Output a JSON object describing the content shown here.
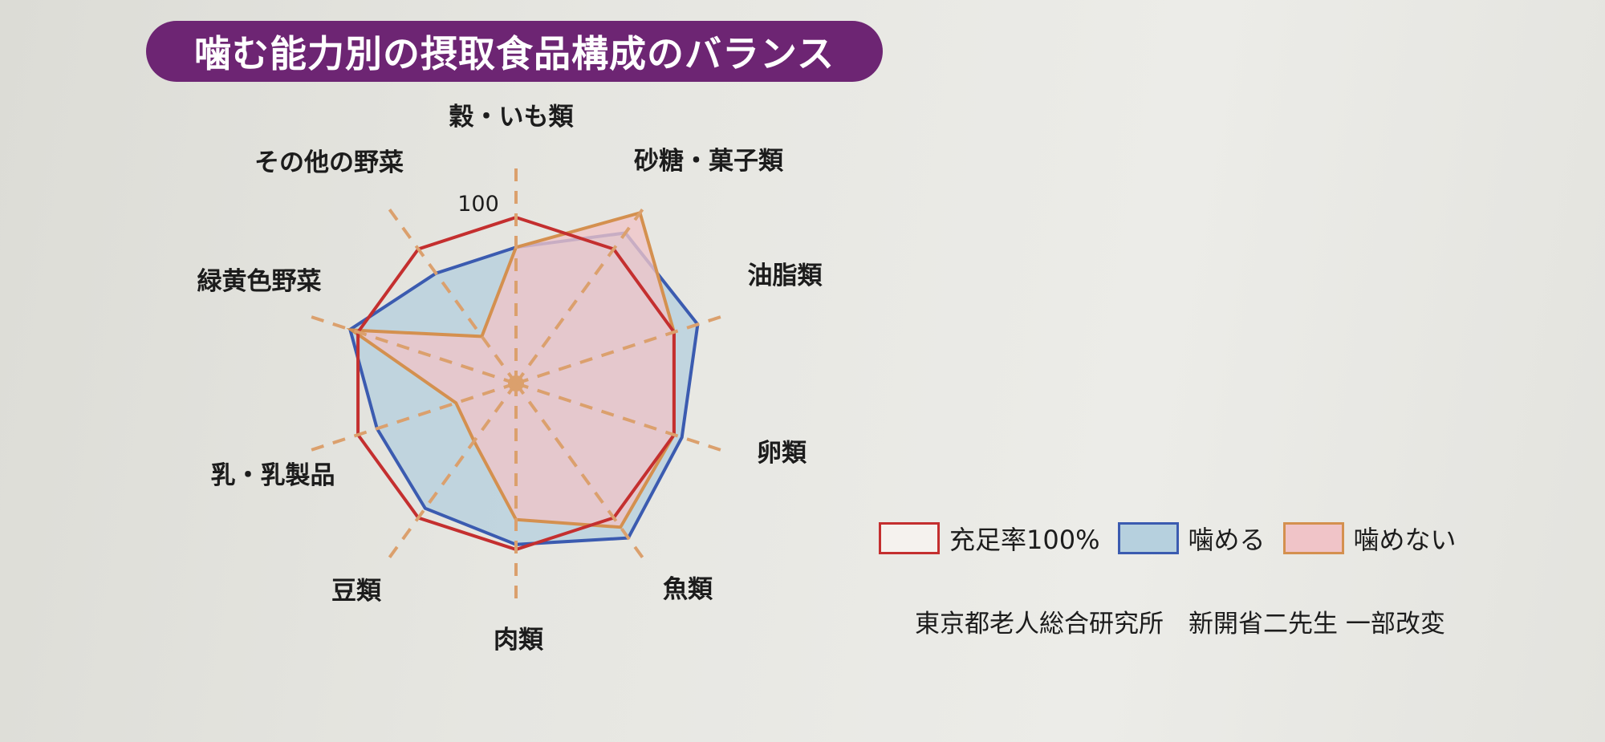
{
  "header": {
    "title": "噛む能力別の摂取食品構成のバランス"
  },
  "chart_data": {
    "type": "radar",
    "title": "噛む能力別の摂取食品構成のバランス",
    "categories": [
      "穀・いも類",
      "砂糖・菓子類",
      "油脂類",
      "卵類",
      "魚類",
      "肉類",
      "豆類",
      "乳・乳製品",
      "緑黄色野菜",
      "その他の野菜"
    ],
    "scale_label": "100",
    "rmax": 130,
    "series": [
      {
        "name": "充足率100%",
        "values": [
          100,
          100,
          100,
          100,
          100,
          100,
          100,
          100,
          100,
          100
        ],
        "stroke": "#c42f2f",
        "fill": "none"
      },
      {
        "name": "噛める",
        "values": [
          82,
          112,
          115,
          105,
          115,
          97,
          93,
          88,
          105,
          82
        ],
        "stroke": "#3b5bb0",
        "fill": "#b6d0de"
      },
      {
        "name": "噛めない",
        "values": [
          82,
          127,
          100,
          100,
          107,
          82,
          43,
          38,
          104,
          35
        ],
        "stroke": "#d4904f",
        "fill": "#f0c4c8"
      }
    ],
    "colors": {
      "axis": "#dba06d"
    }
  },
  "legend": [
    {
      "label": "充足率100%",
      "stroke": "#c42f2f",
      "fill": "#f5f2ee"
    },
    {
      "label": "噛める",
      "stroke": "#3b5bb0",
      "fill": "#b6d0de"
    },
    {
      "label": "噛めない",
      "stroke": "#d4904f",
      "fill": "#f0c4c8"
    }
  ],
  "source": "東京都老人総合研究所　新開省二先生 一部改変"
}
